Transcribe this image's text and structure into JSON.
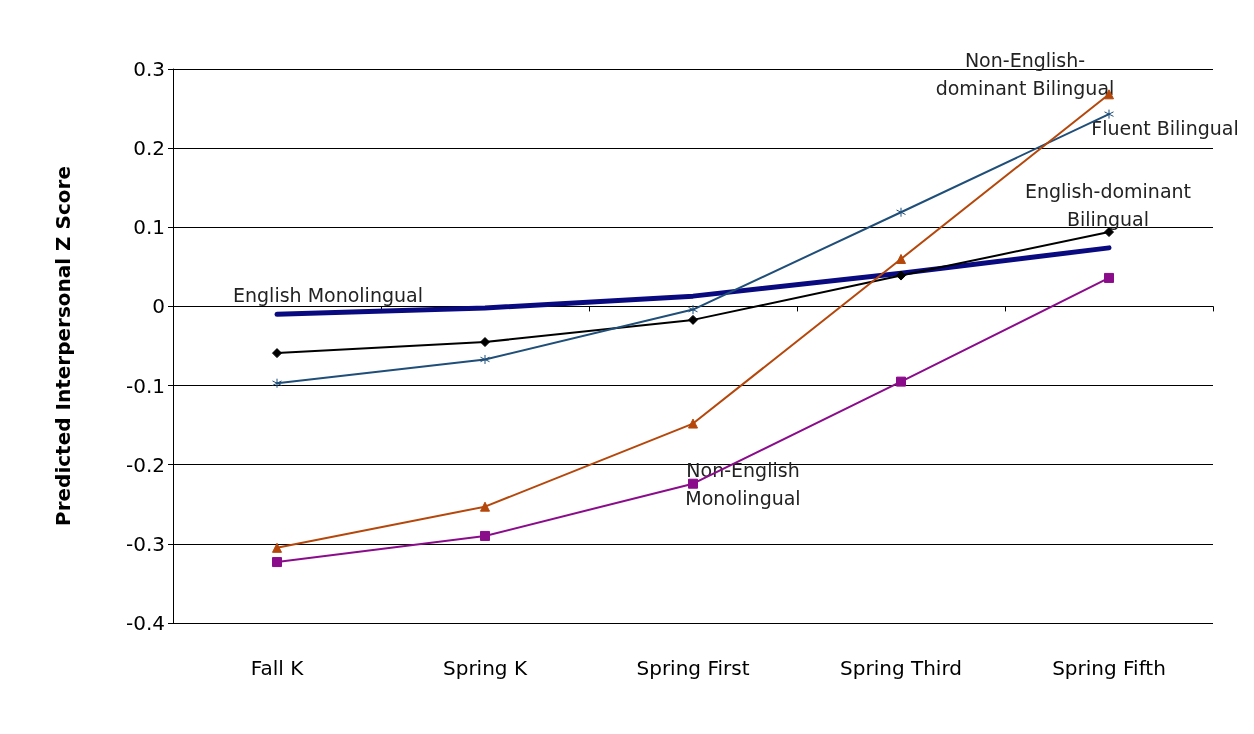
{
  "chart_data": {
    "type": "line",
    "ylabel": "Predicted Interpersonal Z Score",
    "categories": [
      "Fall K",
      "Spring K",
      "Spring First",
      "Spring Third",
      "Spring Fifth"
    ],
    "series": [
      {
        "color": "#0a0a80",
        "marker": "none",
        "values": [
          -0.01,
          -0.002,
          0.013,
          0.042,
          0.074
        ]
      },
      {
        "color": "#000000",
        "marker": "diamond",
        "values": [
          -0.059,
          -0.045,
          -0.017,
          0.039,
          0.094
        ]
      },
      {
        "color": "#1f4e79",
        "marker": "cross",
        "values": [
          -0.097,
          -0.067,
          -0.004,
          0.119,
          0.243
        ]
      },
      {
        "color": "#b5470b",
        "marker": "triangle",
        "values": [
          -0.305,
          -0.253,
          -0.148,
          0.06,
          0.268
        ]
      },
      {
        "color": "#8b0c8b",
        "marker": "square",
        "values": [
          -0.323,
          -0.29,
          -0.224,
          -0.095,
          0.036
        ]
      }
    ],
    "annotations": [
      "English Monolingual",
      "Non-English-\ndominant Bilingual",
      "Fluent Bilingual",
      "English-dominant\nBilingual",
      "Non-English\nMonolingual"
    ],
    "ylim": [
      -0.4,
      0.3
    ],
    "yticks": [
      -0.4,
      -0.3,
      -0.2,
      -0.1,
      0,
      0.1,
      0.2,
      0.3
    ],
    "grid": "y",
    "line_style": "solid"
  }
}
